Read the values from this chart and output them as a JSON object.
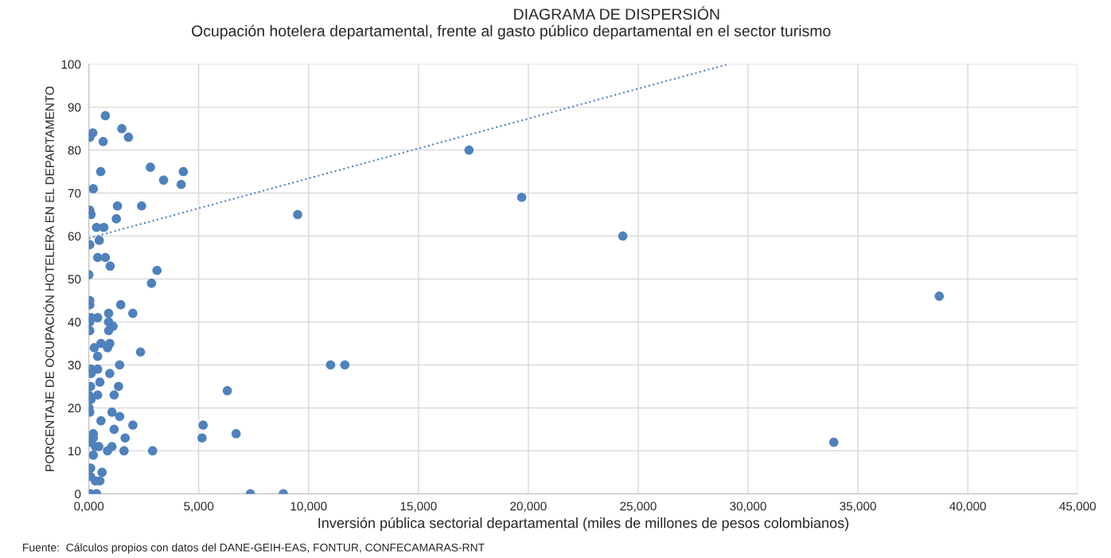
{
  "chart_data": {
    "type": "scatter",
    "title": "DIAGRAMA DE DISPERSIÓN",
    "subtitle": "Ocupación hotelera departamental, frente al gasto público departamental en el sector turismo",
    "xlabel": "Inversión pública sectorial departamental (miles de millones de pesos colombianos)",
    "ylabel": "PORCENTAJE DE OCUPACIÓN HOTELERA EN EL DEPARTAMENTO",
    "annotations": [
      "Fuente:  Cálculos propios con datos del DANE-GEIH-EAS, FONTUR, CONFECAMARAS-RNT"
    ],
    "xlim": [
      0,
      45000
    ],
    "xticks": [
      {
        "value": 0,
        "label": "0,000"
      },
      {
        "value": 5000,
        "label": "5,000"
      },
      {
        "value": 10000,
        "label": "10,000"
      },
      {
        "value": 15000,
        "label": "15,000"
      },
      {
        "value": 20000,
        "label": "20,000"
      },
      {
        "value": 25000,
        "label": "25,000"
      },
      {
        "value": 30000,
        "label": "30,000"
      },
      {
        "value": 35000,
        "label": "35,000"
      },
      {
        "value": 40000,
        "label": "40,000"
      },
      {
        "value": 45000,
        "label": "45,000"
      }
    ],
    "ylim": [
      0,
      100
    ],
    "yticks": [
      0,
      10,
      20,
      30,
      40,
      50,
      60,
      70,
      80,
      90,
      100
    ],
    "grid": true,
    "series": [
      {
        "color": "#4f81bd",
        "marker": "circle",
        "x": [
          750,
          1500,
          1800,
          180,
          40,
          650,
          2800,
          540,
          4300,
          3400,
          4200,
          200,
          1300,
          2400,
          1250,
          40,
          100,
          350,
          680,
          470,
          40,
          400,
          750,
          970,
          0,
          3100,
          2850,
          9500,
          17300,
          19700,
          24300,
          33900,
          38700,
          11000,
          11650,
          6300,
          5200,
          5150,
          6700,
          7350,
          8850,
          40,
          40,
          1450,
          900,
          2000,
          100,
          400,
          40,
          900,
          1100,
          40,
          900,
          550,
          950,
          250,
          850,
          2350,
          400,
          100,
          400,
          1400,
          100,
          950,
          500,
          80,
          1350,
          0,
          400,
          1150,
          100,
          0,
          40,
          1050,
          1400,
          550,
          2000,
          1150,
          200,
          1650,
          200,
          80,
          300,
          450,
          1050,
          850,
          1600,
          2900,
          200,
          80,
          600,
          80,
          300,
          500,
          80,
          350
        ],
        "values": [
          88,
          85,
          83,
          84,
          83,
          82,
          76,
          75,
          75,
          73,
          72,
          71,
          67,
          67,
          64,
          66,
          65,
          62,
          62,
          59,
          58,
          55,
          55,
          53,
          51,
          52,
          49,
          65,
          80,
          69,
          60,
          12,
          46,
          30,
          30,
          24,
          16,
          13,
          14,
          0,
          0,
          45,
          44,
          44,
          42,
          42,
          41,
          41,
          40,
          40,
          39,
          38,
          38,
          35,
          35,
          34,
          34,
          33,
          32,
          29,
          29,
          30,
          28,
          28,
          26,
          25,
          25,
          23,
          23,
          23,
          22,
          20,
          19,
          19,
          18,
          17,
          16,
          15,
          14,
          13,
          13,
          12,
          11,
          11,
          11,
          10,
          10,
          10,
          9,
          6,
          5,
          4,
          3,
          3,
          0,
          0
        ]
      },
      {
        "type": "line",
        "color": "#4f81bd",
        "line_style": "dotted",
        "x": [
          0,
          29100
        ],
        "values": [
          59.5,
          100
        ]
      }
    ]
  }
}
